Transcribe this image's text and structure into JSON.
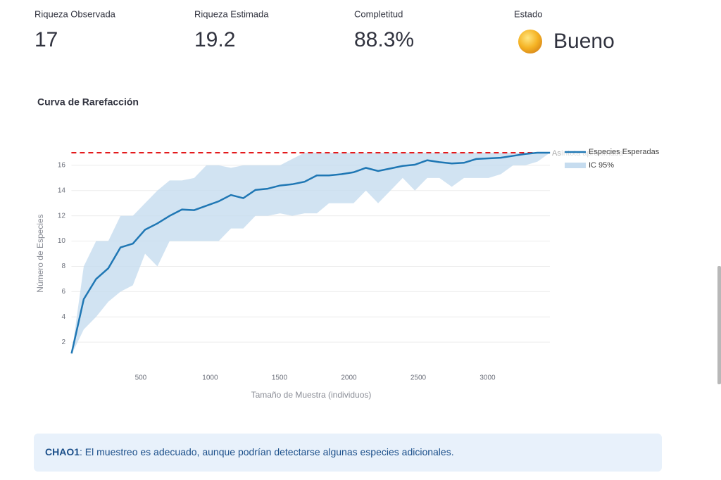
{
  "metrics": [
    {
      "label": "Riqueza Observada",
      "value": 17
    },
    {
      "label": "Riqueza Estimada",
      "value": 19.2
    },
    {
      "label": "Completitud",
      "value": "88.3%"
    },
    {
      "label": "Estado",
      "value": "Bueno"
    }
  ],
  "chart_heading": "Curva de Rarefacción",
  "chart_data": {
    "type": "line",
    "xlabel": "Tamaño de Muestra (individuos)",
    "ylabel": "Número de Especies",
    "x": [
      1,
      89,
      178,
      266,
      354,
      443,
      531,
      620,
      708,
      797,
      885,
      973,
      1062,
      1150,
      1239,
      1327,
      1415,
      1504,
      1592,
      1681,
      1769,
      1857,
      1946,
      2034,
      2123,
      2211,
      2300,
      2388,
      2476,
      2565,
      2653,
      2742,
      2830,
      2918,
      3007,
      3095,
      3184,
      3272,
      3361,
      3450
    ],
    "series": [
      {
        "name": "Especies Esperadas",
        "color": "#1f77b4",
        "values": [
          1.1,
          5.4,
          7.0,
          7.85,
          9.5,
          9.8,
          10.9,
          11.4,
          12.0,
          12.5,
          12.45,
          12.8,
          13.15,
          13.65,
          13.4,
          14.05,
          14.15,
          14.4,
          14.5,
          14.7,
          15.2,
          15.2,
          15.3,
          15.45,
          15.8,
          15.55,
          15.75,
          15.95,
          16.05,
          16.4,
          16.25,
          16.15,
          16.2,
          16.5,
          16.55,
          16.6,
          16.75,
          16.9,
          17.0,
          17.0
        ]
      }
    ],
    "band": {
      "name": "IC 95%",
      "color": "#c6dcef",
      "upper": [
        1,
        8,
        10,
        10,
        12,
        12,
        13,
        14,
        14.8,
        14.8,
        15,
        16,
        16,
        15.8,
        16,
        16,
        16,
        16,
        16.5,
        17,
        17,
        17,
        17,
        17,
        17,
        17,
        17,
        17,
        17,
        17,
        17,
        17,
        17,
        17,
        17,
        17,
        17,
        17,
        17,
        17
      ],
      "lower": [
        1,
        3,
        4,
        5.2,
        6,
        6.5,
        9,
        8,
        10,
        10,
        10,
        10,
        10,
        11,
        11,
        12,
        12,
        12.2,
        12,
        12.2,
        12.2,
        13,
        13,
        13,
        14,
        13,
        14,
        15,
        14,
        15,
        15,
        14.3,
        15,
        15,
        15,
        15.3,
        16,
        16,
        16.3,
        17
      ]
    },
    "asymptote": {
      "name": "Asíntota aproximada",
      "value": 17,
      "color": "#e31a1c"
    },
    "xlim": [
      0,
      3500
    ],
    "ylim": [
      0,
      18
    ],
    "xticks": [
      500,
      1000,
      1500,
      2000,
      2500,
      3000
    ],
    "yticks": [
      2,
      4,
      6,
      8,
      10,
      12,
      14,
      16
    ],
    "grid": true
  },
  "info": {
    "bold": "CHAO1",
    "text": ": El muestreo es adecuado, aunque podrían detectarse algunas especies adicionales."
  }
}
